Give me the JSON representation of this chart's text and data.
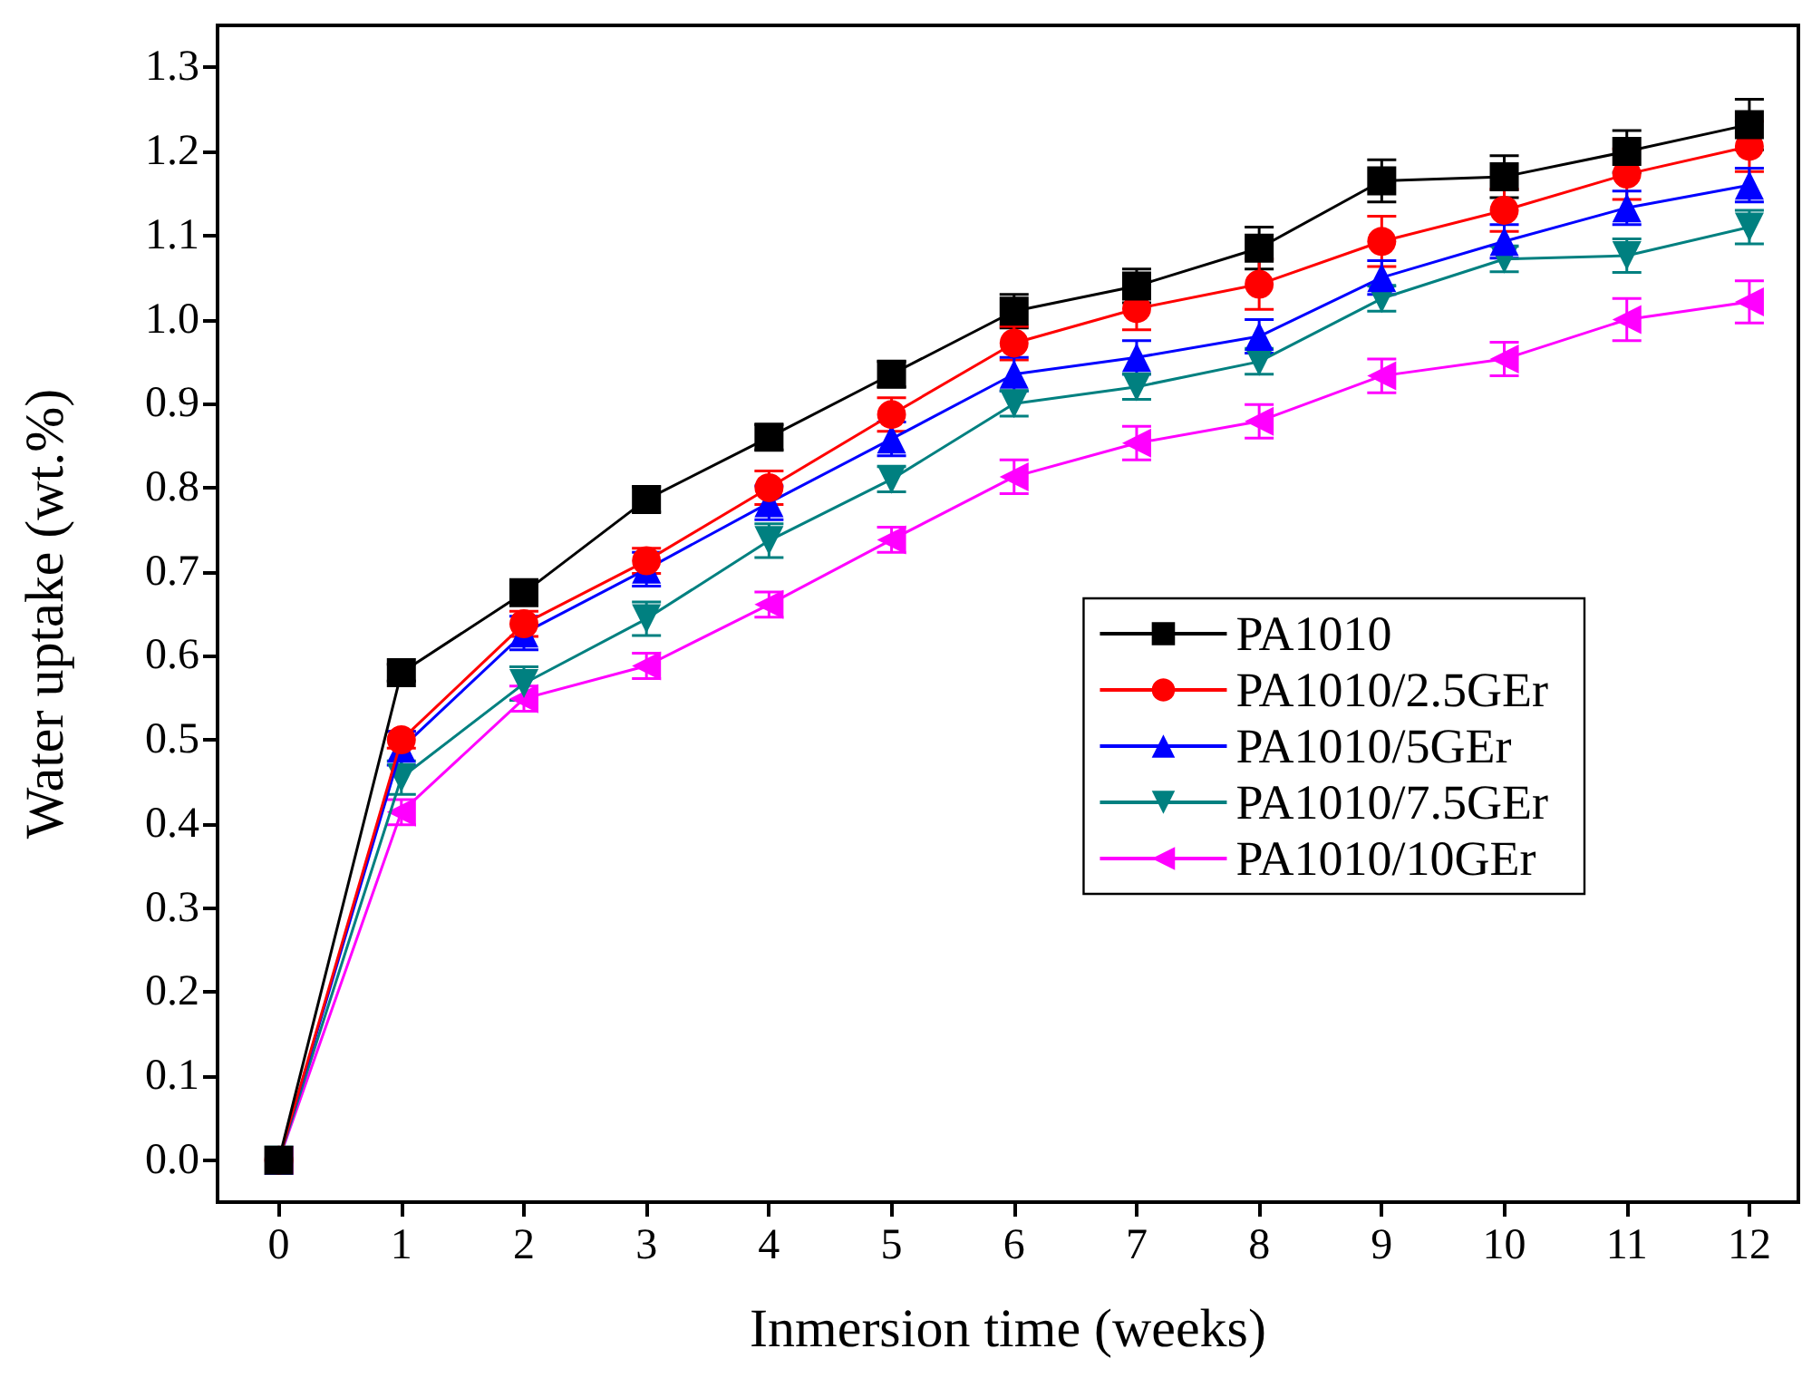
{
  "chart_data": {
    "type": "line",
    "xlabel": "Inmersion time (weeks)",
    "ylabel": "Water uptake (wt.%)",
    "x": [
      0,
      1,
      2,
      3,
      4,
      5,
      6,
      7,
      8,
      9,
      10,
      11,
      12
    ],
    "xlim": [
      -0.5,
      12.4
    ],
    "xticks": [
      0,
      1,
      2,
      3,
      4,
      5,
      6,
      7,
      8,
      9,
      10,
      11,
      12
    ],
    "ylim": [
      -0.05,
      1.35
    ],
    "yticks": [
      {
        "value": 0,
        "label": "0.0"
      },
      0.1,
      0.2,
      0.3,
      0.4,
      0.5,
      0.6,
      0.7,
      0.8,
      0.9,
      {
        "value": 1,
        "label": "1.0"
      },
      1.1,
      1.2,
      1.3
    ],
    "grid": false,
    "legend": "right",
    "line_style": "solid",
    "series": [
      {
        "name": "PA1010",
        "color": "#000000",
        "marker": "square",
        "values": [
          0,
          0.58,
          0.675,
          0.786,
          0.86,
          0.935,
          1.01,
          1.04,
          1.085,
          1.165,
          1.17,
          1.2,
          1.232
        ],
        "errors": [
          null,
          0.01,
          0.01,
          0.015,
          0.015,
          0.015,
          0.02,
          0.02,
          0.025,
          0.025,
          0.025,
          0.025,
          0.03
        ]
      },
      {
        "name": "PA1010/2.5GEr",
        "color": "#ff0000",
        "marker": "circle",
        "values": [
          0,
          0.5,
          0.638,
          0.713,
          0.8,
          0.887,
          0.972,
          1.013,
          1.042,
          1.093,
          1.13,
          1.173,
          1.206
        ],
        "errors": [
          null,
          0.01,
          0.015,
          0.015,
          0.02,
          0.02,
          0.02,
          0.025,
          0.03,
          0.03,
          0.025,
          0.03,
          0.03
        ]
      },
      {
        "name": "PA1010/5GEr",
        "color": "#0000ff",
        "marker": "triangle",
        "values": [
          0,
          0.49,
          0.627,
          0.703,
          0.782,
          0.858,
          0.935,
          0.955,
          0.98,
          1.05,
          1.093,
          1.133,
          1.16
        ],
        "errors": [
          null,
          0.02,
          0.02,
          0.02,
          0.02,
          0.02,
          0.02,
          0.02,
          0.02,
          0.02,
          0.02,
          0.02,
          0.02
        ]
      },
      {
        "name": "PA1010/7.5GEr",
        "color": "#008080",
        "marker": "triangle-down",
        "values": [
          0,
          0.455,
          0.567,
          0.644,
          0.737,
          0.81,
          0.9,
          0.92,
          0.95,
          1.025,
          1.072,
          1.076,
          1.11
        ],
        "errors": [
          null,
          0.02,
          0.02,
          0.02,
          0.02,
          0.015,
          0.015,
          0.015,
          0.015,
          0.015,
          0.015,
          0.02,
          0.02
        ]
      },
      {
        "name": "PA1010/10GEr",
        "color": "#ff00ff",
        "marker": "triangle-left",
        "values": [
          0,
          0.414,
          0.549,
          0.588,
          0.661,
          0.738,
          0.813,
          0.853,
          0.879,
          0.933,
          0.953,
          1.0,
          1.021
        ],
        "errors": [
          null,
          0.015,
          0.015,
          0.015,
          0.015,
          0.015,
          0.02,
          0.02,
          0.02,
          0.02,
          0.02,
          0.025,
          0.025
        ]
      }
    ]
  }
}
